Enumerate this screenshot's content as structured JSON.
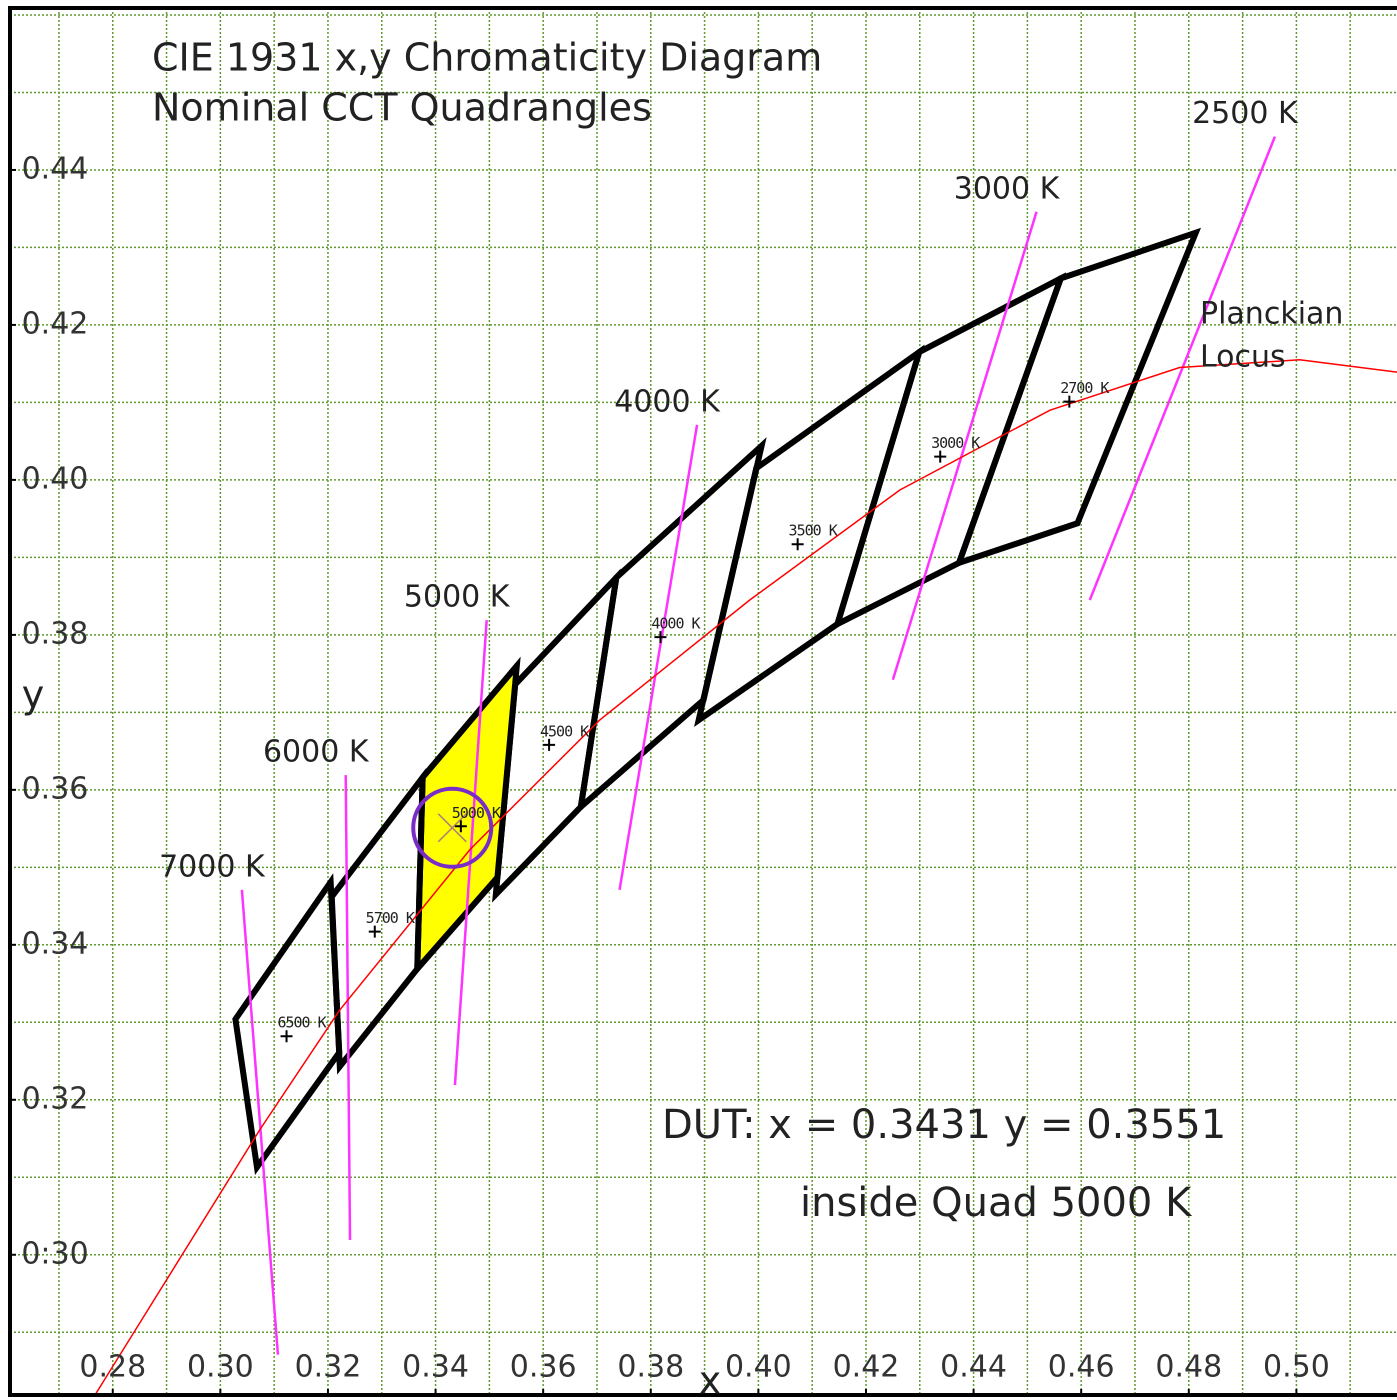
{
  "chart_data": {
    "type": "chromaticity",
    "title": "CIE 1931 x,y Chromaticity Diagram",
    "subtitle": "Nominal CCT Quadrangles",
    "xlabel": "x",
    "ylabel": "y",
    "xlim": [
      0.2609,
      0.5187
    ],
    "ylim": [
      0.2819,
      0.4609
    ],
    "xticks": [
      0.28,
      {
        "value": 0.3,
        "label": "0.30"
      },
      0.32,
      0.34,
      0.36,
      0.38,
      {
        "value": 0.4,
        "label": "0.40"
      },
      0.42,
      0.44,
      0.46,
      0.48,
      {
        "value": 0.5,
        "label": "0.50"
      }
    ],
    "yticks": [
      {
        "value": 0.3,
        "label": "0:30"
      },
      0.32,
      0.34,
      0.36,
      0.38,
      {
        "value": 0.4,
        "label": "0.40"
      },
      0.42,
      0.44
    ],
    "grid": true,
    "grid_step": 0.01,
    "grid_color": "#5f9a2f",
    "quads": [
      {
        "name": "2700 K",
        "x": [
          0.4813,
          0.4562,
          0.4373,
          0.4593
        ],
        "y": [
          0.4319,
          0.426,
          0.3893,
          0.3944
        ],
        "center": [
          0.4578,
          0.4101
        ]
      },
      {
        "name": "3000 K",
        "x": [
          0.4562,
          0.4299,
          0.4147,
          0.4373
        ],
        "y": [
          0.426,
          0.4165,
          0.3814,
          0.3893
        ],
        "center": [
          0.4338,
          0.403
        ]
      },
      {
        "name": "3500 K",
        "x": [
          0.4299,
          0.3996,
          0.3889,
          0.4147
        ],
        "y": [
          0.4165,
          0.4015,
          0.369,
          0.3814
        ],
        "center": [
          0.4073,
          0.3917
        ]
      },
      {
        "name": "4000 K",
        "x": [
          0.4006,
          0.3736,
          0.367,
          0.3898
        ],
        "y": [
          0.4044,
          0.3874,
          0.3578,
          0.3716
        ],
        "center": [
          0.3818,
          0.3797
        ]
      },
      {
        "name": "4500 K",
        "x": [
          0.3736,
          0.3548,
          0.3512,
          0.367
        ],
        "y": [
          0.3874,
          0.3736,
          0.3465,
          0.3578
        ],
        "center": [
          0.3611,
          0.3658
        ]
      },
      {
        "name": "5000 K",
        "x": [
          0.3551,
          0.3376,
          0.3366,
          0.3515
        ],
        "y": [
          0.376,
          0.3616,
          0.3369,
          0.3487
        ],
        "center": [
          0.3447,
          0.3553
        ],
        "fill": "#ffff00"
      },
      {
        "name": "5700 K",
        "x": [
          0.3376,
          0.3207,
          0.3222,
          0.3366
        ],
        "y": [
          0.3616,
          0.3462,
          0.3243,
          0.3369
        ],
        "center": [
          0.3287,
          0.3417
        ]
      },
      {
        "name": "6500 K",
        "x": [
          0.3205,
          0.3028,
          0.3068,
          0.3221
        ],
        "y": [
          0.3481,
          0.3304,
          0.3113,
          0.3261
        ],
        "center": [
          0.3123,
          0.3282
        ]
      }
    ],
    "quad_color": "#000000",
    "isotherms": [
      {
        "name": "2500 K",
        "x": [
          0.496,
          0.4616
        ],
        "y": [
          0.4443,
          0.3845
        ]
      },
      {
        "name": "3000 K",
        "x": [
          0.4517,
          0.425
        ],
        "y": [
          0.4346,
          0.3742
        ]
      },
      {
        "name": "4000 K",
        "x": [
          0.3886,
          0.3742
        ],
        "y": [
          0.4071,
          0.3471
        ]
      },
      {
        "name": "5000 K",
        "x": [
          0.3495,
          0.3436
        ],
        "y": [
          0.3819,
          0.3219
        ]
      },
      {
        "name": "6000 K",
        "x": [
          0.3233,
          0.3241
        ],
        "y": [
          0.3619,
          0.3019
        ]
      },
      {
        "name": "7000 K",
        "x": [
          0.304,
          0.3107
        ],
        "y": [
          0.3471,
          0.2871
        ]
      }
    ],
    "isotherm_color": "#ff33ff",
    "locus": {
      "label": [
        "Planckian",
        "Locus"
      ],
      "color": "#ff0000",
      "x": [
        0.2767,
        0.3073,
        0.3222,
        0.3464,
        0.3705,
        0.3984,
        0.4263,
        0.4542,
        0.4783,
        0.5006,
        0.5187
      ],
      "y": [
        0.2819,
        0.3161,
        0.3316,
        0.3523,
        0.369,
        0.3845,
        0.3987,
        0.409,
        0.4145,
        0.4155,
        0.4139
      ]
    },
    "dut": {
      "label": "DUT: x = 0.3431   y = 0.3551",
      "x": 0.3431,
      "y": 0.3551,
      "color": "#7a2cc8",
      "status": "inside  Quad 5000 K",
      "status_color": "#c0282a"
    }
  }
}
